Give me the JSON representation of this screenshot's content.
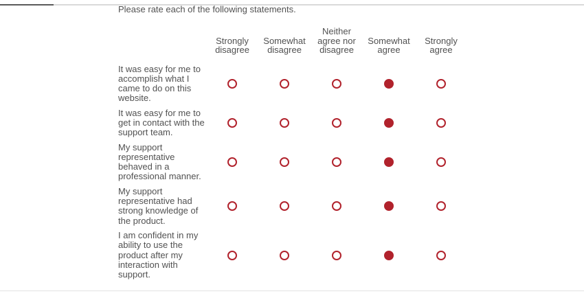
{
  "page": {
    "title": "Please rate each of the following statements."
  },
  "matrix": {
    "columns": [
      "Strongly disagree",
      "Somewhat disagree",
      "Neither agree nor disagree",
      "Somewhat agree",
      "Strongly agree"
    ],
    "rows": [
      {
        "statement": "It was easy for me to accomplish what I came to do on this website.",
        "selected": 3
      },
      {
        "statement": "It was easy for me to get in contact with the support team.",
        "selected": 3
      },
      {
        "statement": "My support representative behaved in a professional manner.",
        "selected": 3
      },
      {
        "statement": "My support representative had strong knowledge of the product.",
        "selected": 3
      },
      {
        "statement": "I am confident in my ability to use the product after my interaction with support.",
        "selected": 3
      }
    ],
    "colors": {
      "radio_accent": "#b1222c",
      "text": "#515151"
    }
  }
}
